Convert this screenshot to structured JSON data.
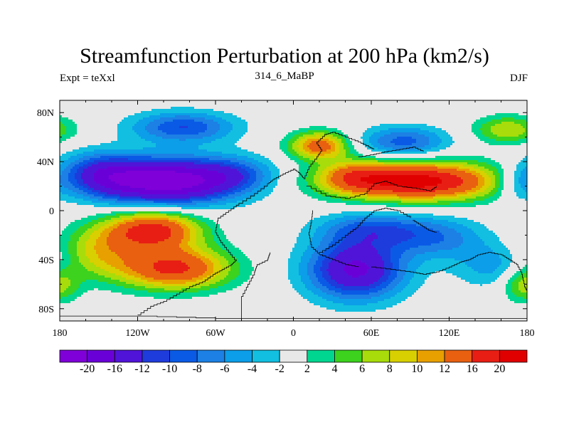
{
  "title": "Streamfunction Perturbation at 200 hPa (km2/s)",
  "left_label": "Expt = teXxl",
  "center_label": "314_6_MaBP",
  "right_label": "DJF",
  "colors": {
    "levels": [
      "#7f00d8",
      "#6a00d8",
      "#5014d8",
      "#1e3cdc",
      "#0a5ae6",
      "#1c80e4",
      "#0c9ee8",
      "#12bfe0",
      "#e8e8e8",
      "#00d690",
      "#3cd21e",
      "#a8dc0a",
      "#d8d000",
      "#e8a000",
      "#e86010",
      "#e81e14",
      "#e00000"
    ],
    "coast": "#000000"
  },
  "chart_data": {
    "type": "heatmap",
    "projection": "cylindrical-equidistant",
    "title": "Streamfunction Perturbation at 200 hPa (km2/s)",
    "xlim": [
      -180,
      180
    ],
    "ylim": [
      -90,
      90
    ],
    "x_ticks": [
      -180,
      -120,
      -60,
      0,
      60,
      120,
      180
    ],
    "x_tick_labels": [
      "180",
      "120W",
      "60W",
      "0",
      "60E",
      "120E",
      "180"
    ],
    "y_ticks": [
      80,
      40,
      0,
      -40,
      -80
    ],
    "y_tick_labels": [
      "80N",
      "40N",
      "0",
      "40S",
      "80S"
    ],
    "contour_levels": [
      -20,
      -16,
      -12,
      -10,
      -8,
      -6,
      -4,
      -2,
      2,
      4,
      6,
      8,
      10,
      12,
      16,
      20
    ],
    "colorbar_labels": [
      "-20",
      "-16",
      "-12",
      "-10",
      "-8",
      "-6",
      "-4",
      "-2",
      "2",
      "4",
      "6",
      "8",
      "10",
      "12",
      "16",
      "20"
    ],
    "features": [
      {
        "lon": -98,
        "lat": 24,
        "amp": -23,
        "sx": 38,
        "sy": 13
      },
      {
        "lon": -150,
        "lat": 30,
        "amp": -10,
        "sx": 22,
        "sy": 12
      },
      {
        "lon": -45,
        "lat": 30,
        "amp": -6,
        "sx": 22,
        "sy": 10
      },
      {
        "lon": -85,
        "lat": 68,
        "amp": -10,
        "sx": 28,
        "sy": 9
      },
      {
        "lon": 95,
        "lat": 24,
        "amp": 22,
        "sx": 45,
        "sy": 11
      },
      {
        "lon": 45,
        "lat": 28,
        "amp": 7,
        "sx": 18,
        "sy": 9
      },
      {
        "lon": 20,
        "lat": 53,
        "amp": 14,
        "sx": 16,
        "sy": 8
      },
      {
        "lon": 85,
        "lat": 56,
        "amp": -9,
        "sx": 24,
        "sy": 9
      },
      {
        "lon": 165,
        "lat": 66,
        "amp": 8,
        "sx": 18,
        "sy": 8
      },
      {
        "lon": -108,
        "lat": -16,
        "amp": 18,
        "sx": 25,
        "sy": 11
      },
      {
        "lon": -92,
        "lat": -47,
        "amp": 17,
        "sx": 30,
        "sy": 12
      },
      {
        "lon": -150,
        "lat": -33,
        "amp": 8,
        "sx": 22,
        "sy": 15
      },
      {
        "lon": 48,
        "lat": -48,
        "amp": -17,
        "sx": 26,
        "sy": 17
      },
      {
        "lon": 60,
        "lat": -15,
        "amp": -8,
        "sx": 28,
        "sy": 10
      },
      {
        "lon": 110,
        "lat": -22,
        "amp": -7,
        "sx": 26,
        "sy": 12
      },
      {
        "lon": 155,
        "lat": -45,
        "amp": -5,
        "sx": 22,
        "sy": 13
      },
      {
        "lon": 178,
        "lat": -60,
        "amp": 8,
        "sx": 12,
        "sy": 10
      },
      {
        "lon": 172,
        "lat": 22,
        "amp": -5,
        "sx": 12,
        "sy": 10
      }
    ]
  }
}
